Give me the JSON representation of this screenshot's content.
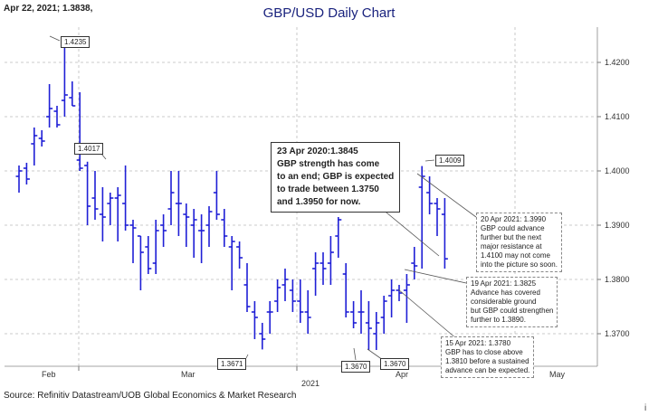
{
  "header": {
    "date_price": "Apr 22, 2021; 1.3838,"
  },
  "source": "Source: Refinitiv Datastream/UOB Global Economics & Market Research",
  "info_icon": "i",
  "chart_data": {
    "type": "ohlc",
    "title": "GBP/USD Daily Chart",
    "series_color": "#1f1fd6",
    "ylim": [
      1.364,
      1.4265
    ],
    "y_ticks": [
      "1.4200",
      "1.4100",
      "1.4000",
      "1.3900",
      "1.3800",
      "1.3700"
    ],
    "x_month_labels": [
      "Feb",
      "Mar",
      "Apr",
      "May"
    ],
    "x_year_label": "2021",
    "grid": true,
    "bars": [
      [
        1.399,
        1.401,
        1.396,
        1.4
      ],
      [
        1.4005,
        1.4015,
        1.3975,
        1.3985
      ],
      [
        1.405,
        1.408,
        1.401,
        1.4065
      ],
      [
        1.406,
        1.4075,
        1.4045,
        1.4055
      ],
      [
        1.41,
        1.416,
        1.408,
        1.4115
      ],
      [
        1.411,
        1.412,
        1.408,
        1.4085
      ],
      [
        1.413,
        1.4235,
        1.41,
        1.414
      ],
      [
        1.4135,
        1.4165,
        1.412,
        1.412
      ],
      [
        1.402,
        1.4145,
        1.4,
        1.4005
      ],
      [
        1.401,
        1.4017,
        1.39,
        1.3935
      ],
      [
        1.395,
        1.4,
        1.391,
        1.393
      ],
      [
        1.392,
        1.397,
        1.387,
        1.3915
      ],
      [
        1.394,
        1.396,
        1.39,
        1.395
      ],
      [
        1.395,
        1.397,
        1.387,
        1.3955
      ],
      [
        1.394,
        1.401,
        1.389,
        1.39
      ],
      [
        1.39,
        1.391,
        1.383,
        1.3895
      ],
      [
        1.388,
        1.388,
        1.378,
        1.385
      ],
      [
        1.386,
        1.388,
        1.381,
        1.382
      ],
      [
        1.383,
        1.391,
        1.381,
        1.389
      ],
      [
        1.39,
        1.392,
        1.386,
        1.389
      ],
      [
        1.393,
        1.4,
        1.39,
        1.396
      ],
      [
        1.394,
        1.4,
        1.388,
        1.394
      ],
      [
        1.392,
        1.394,
        1.386,
        1.3915
      ],
      [
        1.39,
        1.393,
        1.384,
        1.391
      ],
      [
        1.389,
        1.392,
        1.383,
        1.389
      ],
      [
        1.39,
        1.3935,
        1.386,
        1.3925
      ],
      [
        1.396,
        1.4,
        1.391,
        1.392
      ],
      [
        1.391,
        1.393,
        1.386,
        1.388
      ],
      [
        1.386,
        1.388,
        1.378,
        1.387
      ],
      [
        1.386,
        1.387,
        1.382,
        1.384
      ],
      [
        1.379,
        1.383,
        1.374,
        1.375
      ],
      [
        1.374,
        1.376,
        1.369,
        1.373
      ],
      [
        1.37,
        1.372,
        1.3671,
        1.369
      ],
      [
        1.374,
        1.376,
        1.37,
        1.374
      ],
      [
        1.376,
        1.38,
        1.374,
        1.3785
      ],
      [
        1.379,
        1.382,
        1.376,
        1.38
      ],
      [
        1.378,
        1.38,
        1.374,
        1.376
      ],
      [
        1.376,
        1.38,
        1.372,
        1.374
      ],
      [
        1.374,
        1.378,
        1.37,
        1.373
      ],
      [
        1.382,
        1.385,
        1.377,
        1.383
      ],
      [
        1.383,
        1.385,
        1.379,
        1.382
      ],
      [
        1.383,
        1.388,
        1.379,
        1.385
      ],
      [
        1.388,
        1.3915,
        1.384,
        1.391
      ],
      [
        1.381,
        1.383,
        1.373,
        1.374
      ],
      [
        1.374,
        1.376,
        1.371,
        1.372
      ],
      [
        1.374,
        1.378,
        1.37,
        1.374
      ],
      [
        1.372,
        1.376,
        1.367,
        1.371
      ],
      [
        1.37,
        1.374,
        1.367,
        1.372
      ],
      [
        1.373,
        1.377,
        1.37,
        1.376
      ],
      [
        1.377,
        1.38,
        1.373,
        1.378
      ],
      [
        1.378,
        1.379,
        1.376,
        1.3775
      ],
      [
        1.378,
        1.381,
        1.372,
        1.379
      ],
      [
        1.383,
        1.386,
        1.38,
        1.3825
      ],
      [
        1.397,
        1.4009,
        1.382,
        1.399
      ],
      [
        1.396,
        1.399,
        1.392,
        1.394
      ],
      [
        1.394,
        1.395,
        1.388,
        1.393
      ],
      [
        1.392,
        1.395,
        1.382,
        1.3838
      ]
    ],
    "annotations": [
      {
        "text": "1.4235"
      },
      {
        "text": "1.4017"
      },
      {
        "text": "1.3671"
      },
      {
        "text": "1.3670"
      },
      {
        "text": "1.3670"
      },
      {
        "text": "1.4009"
      },
      {
        "lines": [
          "23 Apr 2020:1.3845",
          "GBP strength has come",
          "to an end; GBP is expected",
          "to trade between 1.3750",
          "and 1.3950 for now."
        ]
      },
      {
        "lines": [
          "20 Apr 2021: 1.3990",
          "GBP could advance",
          "further but the next",
          "major resistance at",
          "1.4100 may not come",
          "into the picture so soon."
        ]
      },
      {
        "lines": [
          "19 Apr 2021: 1.3825",
          "Advance has covered",
          "considerable ground",
          "but GBP could strengthen",
          "further to 1.3890."
        ]
      },
      {
        "lines": [
          "15 Apr 2021: 1.3780",
          "GBP has to close above",
          "1.3810 before a sustained",
          "advance can be expected."
        ]
      }
    ]
  }
}
